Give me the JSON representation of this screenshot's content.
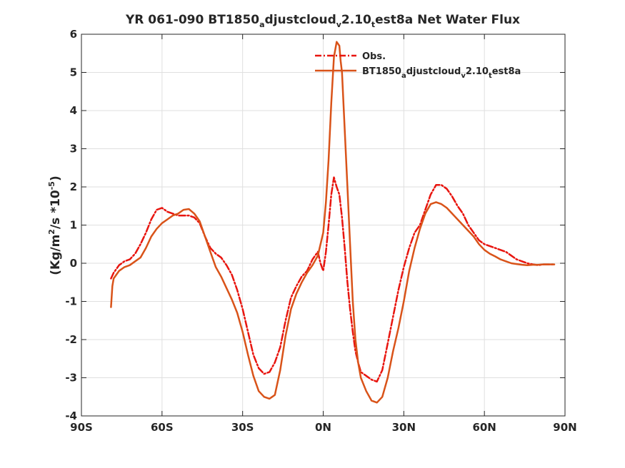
{
  "chart_data": {
    "type": "line",
    "title": {
      "parts": [
        {
          "text": "YR 061-090 BT1850"
        },
        {
          "text": "a",
          "sub": true
        },
        {
          "text": "djustcloud"
        },
        {
          "text": "v",
          "sub": true
        },
        {
          "text": "2.10"
        },
        {
          "text": "t",
          "sub": true
        },
        {
          "text": "est8a  Net Water Flux"
        }
      ]
    },
    "ylabel": {
      "parts": [
        {
          "text": "(Kg/m"
        },
        {
          "text": "2",
          "sup": true
        },
        {
          "text": "/s *10"
        },
        {
          "text": "-5",
          "sup": true
        },
        {
          "text": ")"
        }
      ]
    },
    "xlim": [
      -90,
      90
    ],
    "ylim": [
      -4,
      6
    ],
    "x_ticks": [
      {
        "value": -90,
        "label": "90S"
      },
      {
        "value": -60,
        "label": "60S"
      },
      {
        "value": -30,
        "label": "30S"
      },
      {
        "value": 0,
        "label": "0N"
      },
      {
        "value": 30,
        "label": "30N"
      },
      {
        "value": 60,
        "label": "60N"
      },
      {
        "value": 90,
        "label": "90N"
      }
    ],
    "y_ticks": [
      {
        "value": -4,
        "label": "-4"
      },
      {
        "value": -3,
        "label": "-3"
      },
      {
        "value": -2,
        "label": "-2"
      },
      {
        "value": -1,
        "label": "-1"
      },
      {
        "value": 0,
        "label": "0"
      },
      {
        "value": 1,
        "label": "1"
      },
      {
        "value": 2,
        "label": "2"
      },
      {
        "value": 3,
        "label": "3"
      },
      {
        "value": 4,
        "label": "4"
      },
      {
        "value": 5,
        "label": "5"
      },
      {
        "value": 6,
        "label": "6"
      }
    ],
    "grid": true,
    "legend_position": "top-right",
    "series": [
      {
        "name": "Obs.",
        "legend_parts": [
          {
            "text": "Obs."
          }
        ],
        "color": "#e8150f",
        "style": "dash-dot",
        "x": [
          -79,
          -78,
          -76,
          -74,
          -72,
          -70,
          -68,
          -66,
          -64,
          -62,
          -60,
          -58,
          -56,
          -54,
          -52,
          -50,
          -48,
          -46,
          -44,
          -42,
          -40,
          -38,
          -36,
          -34,
          -32,
          -30,
          -28,
          -26,
          -24,
          -22,
          -20,
          -18,
          -16,
          -14,
          -12,
          -10,
          -8,
          -6,
          -4,
          -2,
          -1,
          0,
          1,
          2,
          3,
          4,
          5,
          6,
          7,
          8,
          9,
          10,
          11,
          12,
          13,
          14,
          16,
          18,
          20,
          22,
          24,
          26,
          28,
          30,
          32,
          34,
          36,
          38,
          40,
          42,
          44,
          46,
          48,
          50,
          52,
          54,
          56,
          58,
          60,
          62,
          64,
          66,
          68,
          70,
          72,
          74,
          76,
          78,
          80,
          82,
          84,
          86
        ],
        "y": [
          -0.4,
          -0.25,
          -0.05,
          0.05,
          0.1,
          0.25,
          0.5,
          0.8,
          1.15,
          1.4,
          1.45,
          1.35,
          1.3,
          1.25,
          1.25,
          1.25,
          1.2,
          1.05,
          0.7,
          0.4,
          0.25,
          0.15,
          -0.05,
          -0.3,
          -0.7,
          -1.2,
          -1.8,
          -2.4,
          -2.75,
          -2.9,
          -2.85,
          -2.6,
          -2.2,
          -1.5,
          -0.9,
          -0.6,
          -0.35,
          -0.2,
          0.1,
          0.3,
          0.0,
          -0.2,
          0.3,
          1.0,
          1.8,
          2.25,
          2.0,
          1.8,
          1.2,
          0.4,
          -0.5,
          -1.2,
          -1.8,
          -2.3,
          -2.6,
          -2.85,
          -2.95,
          -3.05,
          -3.1,
          -2.8,
          -2.1,
          -1.4,
          -0.7,
          -0.1,
          0.4,
          0.8,
          1.0,
          1.4,
          1.8,
          2.05,
          2.05,
          1.95,
          1.75,
          1.5,
          1.3,
          1.0,
          0.8,
          0.6,
          0.5,
          0.45,
          0.4,
          0.35,
          0.3,
          0.2,
          0.1,
          0.05,
          0.0,
          -0.03,
          -0.05,
          -0.03,
          -0.03,
          -0.03
        ]
      },
      {
        "name": "BT1850adjustcloudv2.10test8a",
        "legend_parts": [
          {
            "text": "BT1850"
          },
          {
            "text": "a",
            "sub": true
          },
          {
            "text": "djustcloud"
          },
          {
            "text": "v",
            "sub": true
          },
          {
            "text": "2.10"
          },
          {
            "text": "t",
            "sub": true
          },
          {
            "text": "est8a"
          }
        ],
        "color": "#d95319",
        "style": "solid",
        "x": [
          -79,
          -78.5,
          -78,
          -76,
          -74,
          -72,
          -70,
          -68,
          -66,
          -64,
          -62,
          -60,
          -58,
          -56,
          -54,
          -52,
          -50,
          -48,
          -46,
          -44,
          -42,
          -40,
          -38,
          -36,
          -34,
          -32,
          -30,
          -28,
          -26,
          -24,
          -22,
          -20,
          -18,
          -16,
          -14,
          -12,
          -10,
          -8,
          -6,
          -4,
          -2,
          0,
          1,
          2,
          3,
          4,
          5,
          6,
          6.5,
          7,
          8,
          9,
          10,
          11,
          12,
          13,
          14,
          16,
          18,
          20,
          22,
          24,
          26,
          28,
          30,
          32,
          34,
          36,
          38,
          40,
          42,
          44,
          46,
          48,
          50,
          52,
          54,
          56,
          58,
          60,
          62,
          64,
          66,
          68,
          70,
          72,
          74,
          76,
          78,
          80,
          82,
          84,
          86
        ],
        "y": [
          -1.15,
          -0.6,
          -0.4,
          -0.2,
          -0.1,
          -0.05,
          0.05,
          0.15,
          0.4,
          0.7,
          0.9,
          1.05,
          1.15,
          1.25,
          1.3,
          1.4,
          1.42,
          1.3,
          1.1,
          0.7,
          0.3,
          -0.1,
          -0.35,
          -0.65,
          -0.95,
          -1.3,
          -1.8,
          -2.4,
          -2.95,
          -3.35,
          -3.5,
          -3.55,
          -3.45,
          -2.8,
          -1.9,
          -1.2,
          -0.8,
          -0.5,
          -0.25,
          -0.05,
          0.2,
          0.8,
          1.6,
          2.7,
          4.2,
          5.4,
          5.8,
          5.7,
          5.3,
          5.0,
          3.5,
          2.0,
          0.5,
          -1.0,
          -2.0,
          -2.6,
          -3.0,
          -3.35,
          -3.6,
          -3.65,
          -3.5,
          -3.0,
          -2.3,
          -1.7,
          -1.0,
          -0.2,
          0.4,
          0.9,
          1.3,
          1.55,
          1.6,
          1.55,
          1.45,
          1.3,
          1.15,
          1.0,
          0.85,
          0.7,
          0.5,
          0.35,
          0.25,
          0.18,
          0.1,
          0.05,
          0.0,
          -0.02,
          -0.04,
          -0.05,
          -0.04,
          -0.04,
          -0.03,
          -0.03,
          -0.03
        ]
      }
    ]
  }
}
